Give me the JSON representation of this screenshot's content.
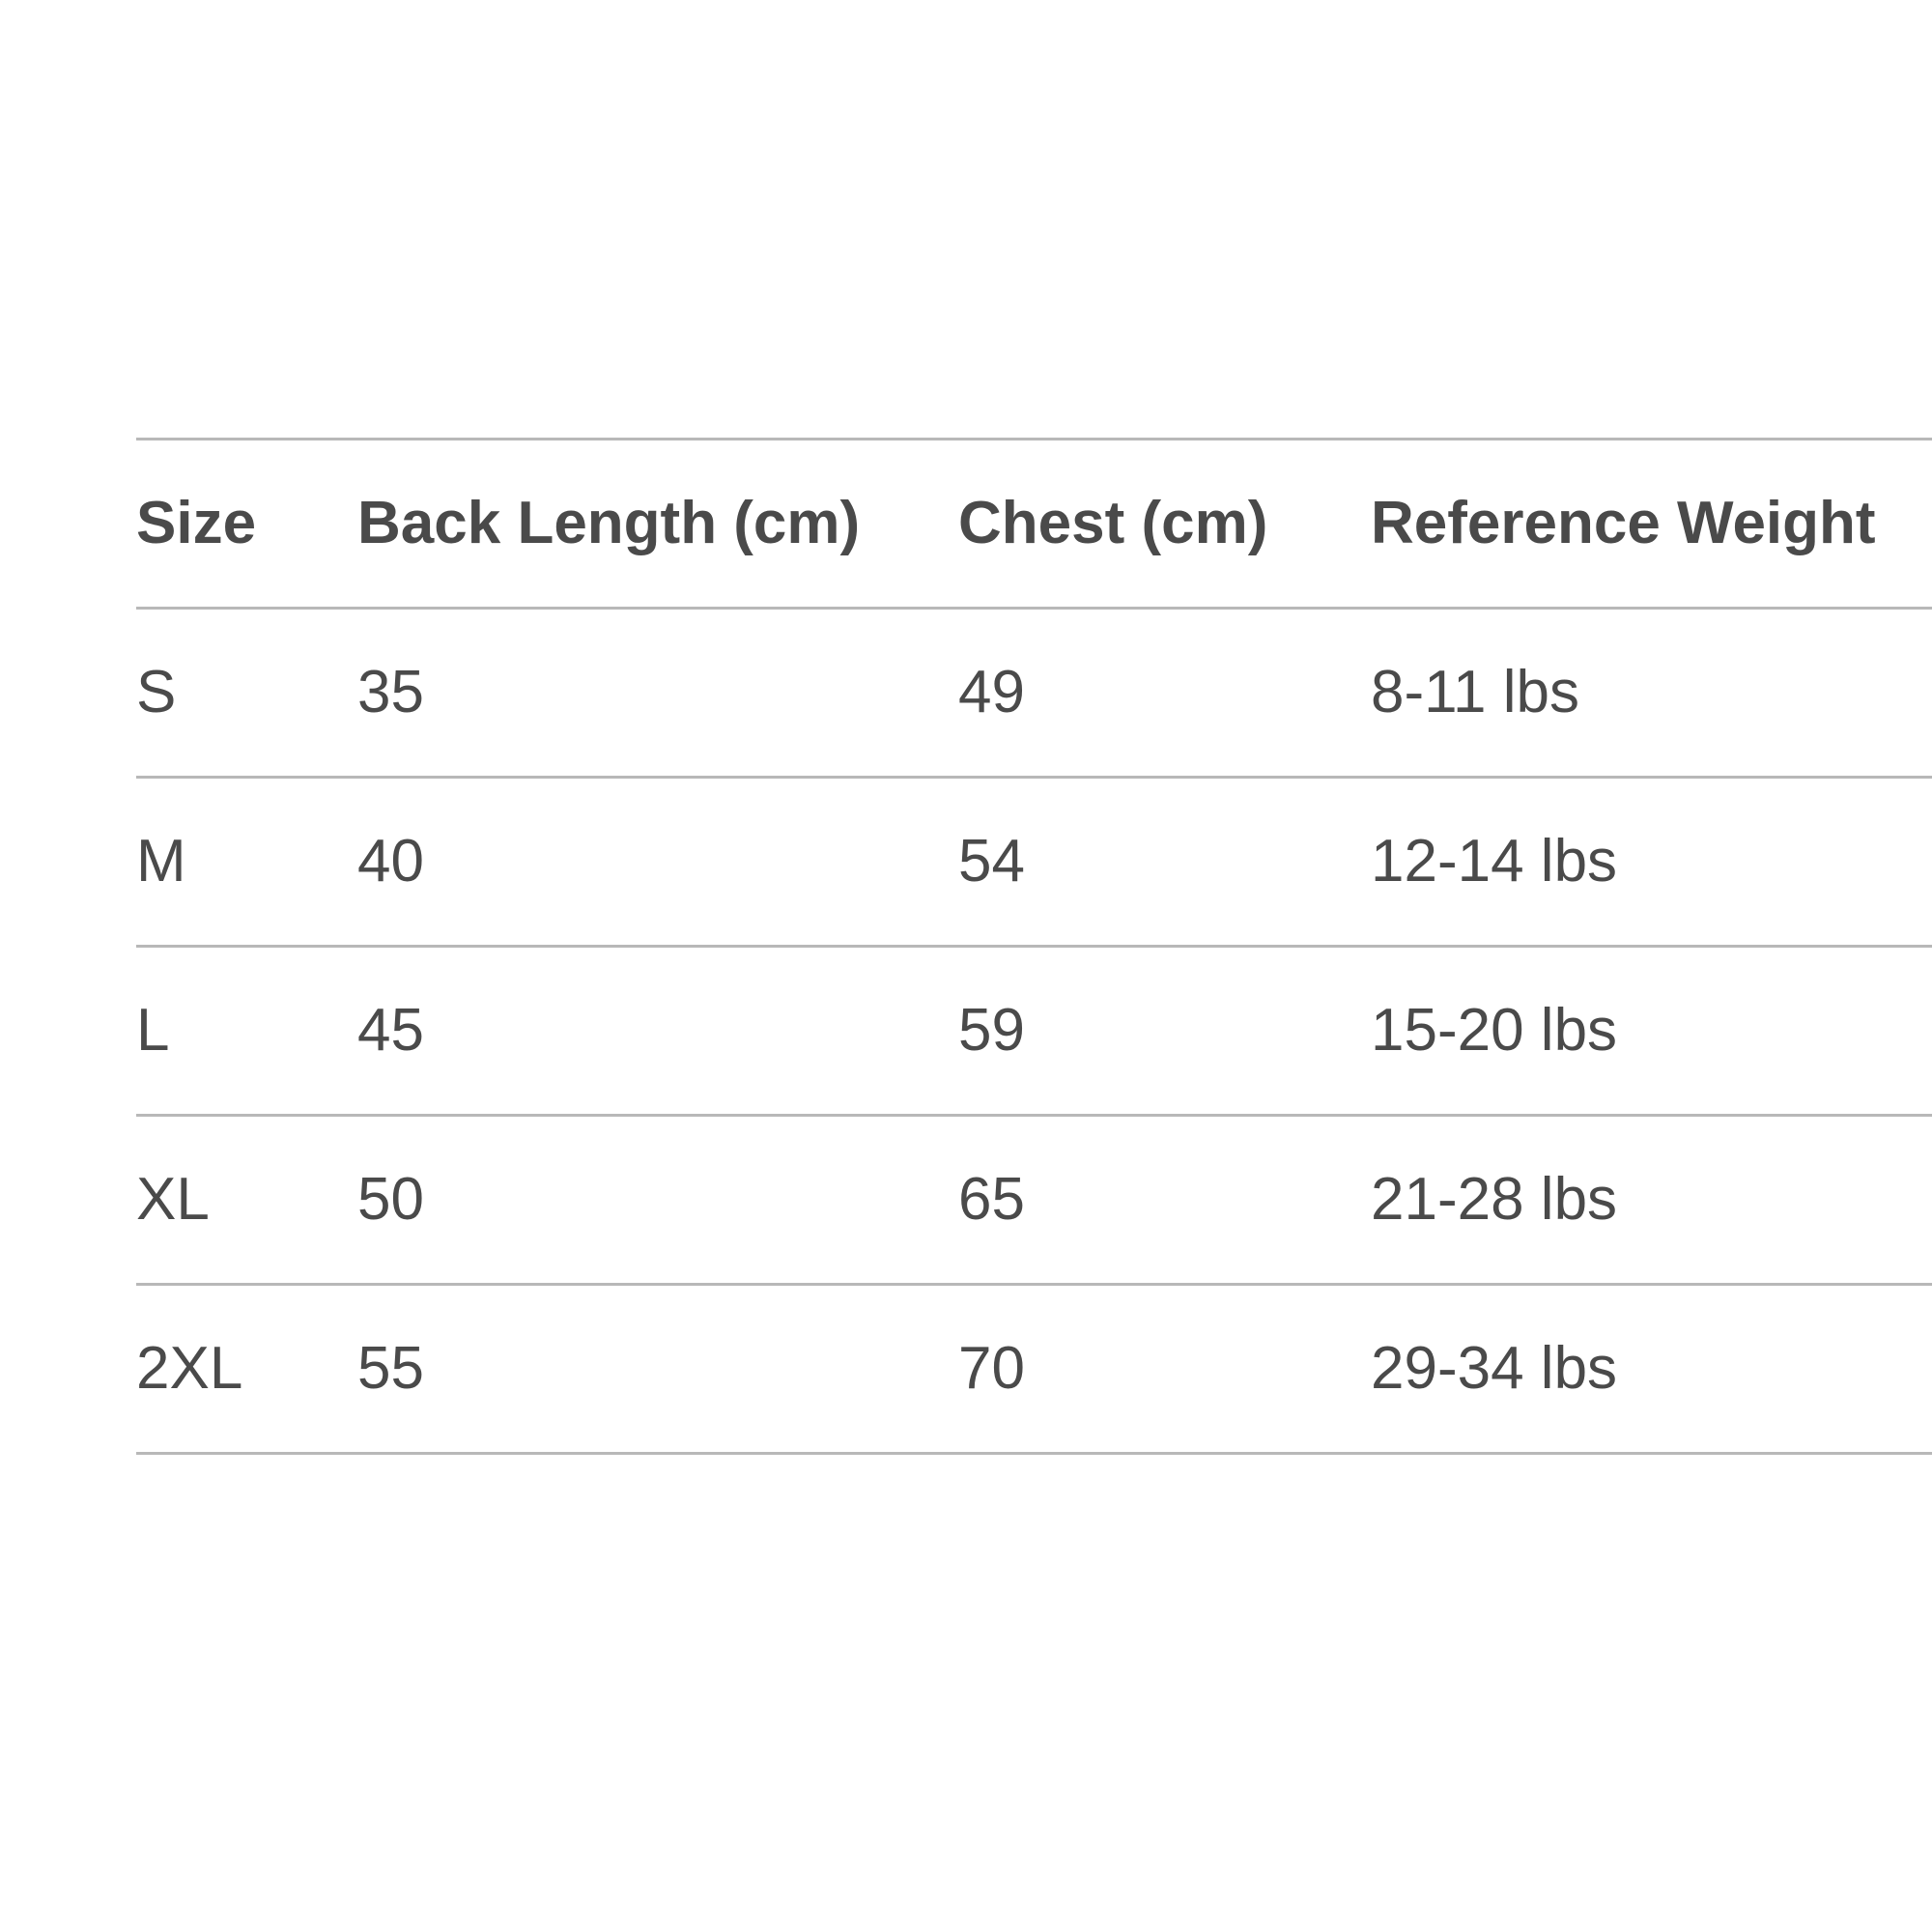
{
  "size_chart": {
    "headers": {
      "size": "Size",
      "back_length": "Back Length (cm)",
      "chest": "Chest (cm)",
      "reference_weight": "Reference Weight"
    },
    "rows": [
      {
        "size": "S",
        "back_length": "35",
        "chest": "49",
        "reference_weight": "8-11 lbs"
      },
      {
        "size": "M",
        "back_length": "40",
        "chest": "54",
        "reference_weight": "12-14 lbs"
      },
      {
        "size": "L",
        "back_length": "45",
        "chest": "59",
        "reference_weight": "15-20 lbs"
      },
      {
        "size": "XL",
        "back_length": "50",
        "chest": "65",
        "reference_weight": "21-28 lbs"
      },
      {
        "size": "2XL",
        "back_length": "55",
        "chest": "70",
        "reference_weight": "29-34 lbs"
      }
    ]
  },
  "colors": {
    "text": "#4a4a4a",
    "rule": "#b8b8b8",
    "background": "#ffffff"
  }
}
